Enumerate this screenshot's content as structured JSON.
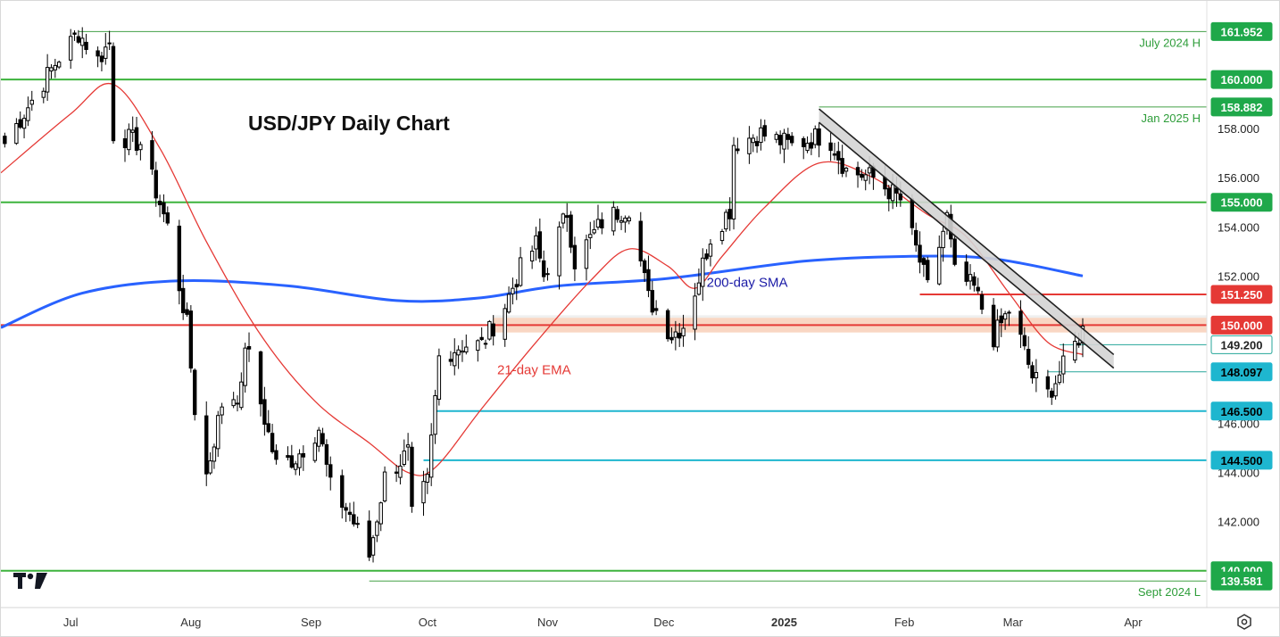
{
  "chart_data": {
    "type": "candlestick",
    "title": "USD/JPY Daily Chart",
    "ylim": [
      138.5,
      163.2
    ],
    "yticks": [
      142.0,
      144.0,
      146.0,
      152.0,
      154.0,
      156.0,
      158.0
    ],
    "x_range": [
      "2024-06-13",
      "2025-04-20"
    ],
    "xticks": [
      {
        "label": "Jul",
        "date": "2024-07-01"
      },
      {
        "label": "Aug",
        "date": "2024-08-01"
      },
      {
        "label": "Sep",
        "date": "2024-09-01"
      },
      {
        "label": "Oct",
        "date": "2024-10-01"
      },
      {
        "label": "Nov",
        "date": "2024-11-01"
      },
      {
        "label": "Dec",
        "date": "2024-12-01"
      },
      {
        "label": "2025",
        "date": "2025-01-01",
        "bold": true
      },
      {
        "label": "Feb",
        "date": "2025-02-01"
      },
      {
        "label": "Mar",
        "date": "2025-03-01"
      },
      {
        "label": "Apr",
        "date": "2025-04-01"
      }
    ],
    "candle_anchors": [
      [
        "2024-06-14",
        157.4
      ],
      [
        "2024-06-28",
        160.9
      ],
      [
        "2024-07-03",
        161.9
      ],
      [
        "2024-07-08",
        160.8
      ],
      [
        "2024-07-11",
        161.5
      ],
      [
        "2024-07-12",
        157.8
      ],
      [
        "2024-07-19",
        157.4
      ],
      [
        "2024-07-26",
        154.0
      ],
      [
        "2024-07-31",
        150.0
      ],
      [
        "2024-08-02",
        146.6
      ],
      [
        "2024-08-05",
        143.9
      ],
      [
        "2024-08-09",
        146.8
      ],
      [
        "2024-08-14",
        147.3
      ],
      [
        "2024-08-15",
        149.3
      ],
      [
        "2024-08-20",
        146.2
      ],
      [
        "2024-08-23",
        144.3
      ],
      [
        "2024-08-28",
        144.6
      ],
      [
        "2024-09-03",
        145.8
      ],
      [
        "2024-09-06",
        143.4
      ],
      [
        "2024-09-11",
        142.3
      ],
      [
        "2024-09-16",
        140.6
      ],
      [
        "2024-09-20",
        143.8
      ],
      [
        "2024-09-26",
        144.8
      ],
      [
        "2024-09-27",
        142.2
      ],
      [
        "2024-10-01",
        143.6
      ],
      [
        "2024-10-04",
        148.7
      ],
      [
        "2024-10-10",
        149.2
      ],
      [
        "2024-10-15",
        149.2
      ],
      [
        "2024-10-21",
        150.8
      ],
      [
        "2024-10-25",
        152.3
      ],
      [
        "2024-10-29",
        153.3
      ],
      [
        "2024-10-31",
        152.0
      ],
      [
        "2024-11-06",
        154.6
      ],
      [
        "2024-11-08",
        152.6
      ],
      [
        "2024-11-15",
        154.2
      ],
      [
        "2024-11-19",
        154.6
      ],
      [
        "2024-11-22",
        154.8
      ],
      [
        "2024-11-27",
        151.1
      ],
      [
        "2024-12-03",
        149.6
      ],
      [
        "2024-12-06",
        150.0
      ],
      [
        "2024-12-10",
        151.9
      ],
      [
        "2024-12-13",
        153.6
      ],
      [
        "2024-12-18",
        154.7
      ],
      [
        "2024-12-19",
        157.4
      ],
      [
        "2024-12-26",
        157.8
      ],
      [
        "2025-01-03",
        157.3
      ],
      [
        "2025-01-10",
        157.7
      ],
      [
        "2025-01-13",
        157.5
      ],
      [
        "2025-01-17",
        156.3
      ],
      [
        "2025-01-24",
        156.0
      ],
      [
        "2025-01-31",
        155.1
      ],
      [
        "2025-02-05",
        152.6
      ],
      [
        "2025-02-07",
        151.5
      ],
      [
        "2025-02-12",
        154.4
      ],
      [
        "2025-02-14",
        152.1
      ],
      [
        "2025-02-19",
        151.5
      ],
      [
        "2025-02-24",
        149.5
      ],
      [
        "2025-02-28",
        150.6
      ],
      [
        "2025-03-03",
        149.4
      ],
      [
        "2025-03-06",
        147.9
      ],
      [
        "2025-03-10",
        147.2
      ],
      [
        "2025-03-13",
        148.0
      ],
      [
        "2025-03-17",
        149.2
      ],
      [
        "2025-03-19",
        149.8
      ]
    ],
    "ema21": [
      [
        "2024-06-13",
        156.2
      ],
      [
        "2024-07-01",
        158.6
      ],
      [
        "2024-07-12",
        159.8
      ],
      [
        "2024-07-24",
        157.2
      ],
      [
        "2024-08-05",
        153.4
      ],
      [
        "2024-08-19",
        149.6
      ],
      [
        "2024-09-02",
        146.9
      ],
      [
        "2024-09-16",
        145.2
      ],
      [
        "2024-09-26",
        144.0
      ],
      [
        "2024-10-03",
        144.2
      ],
      [
        "2024-10-15",
        146.6
      ],
      [
        "2024-10-29",
        149.3
      ],
      [
        "2024-11-12",
        151.8
      ],
      [
        "2024-11-22",
        153.1
      ],
      [
        "2024-12-02",
        152.4
      ],
      [
        "2024-12-09",
        151.5
      ],
      [
        "2024-12-16",
        152.8
      ],
      [
        "2024-12-27",
        154.8
      ],
      [
        "2025-01-10",
        156.6
      ],
      [
        "2025-01-24",
        156.0
      ],
      [
        "2025-02-07",
        154.5
      ],
      [
        "2025-02-17",
        153.6
      ],
      [
        "2025-02-28",
        151.3
      ],
      [
        "2025-03-10",
        149.3
      ],
      [
        "2025-03-19",
        148.8
      ]
    ],
    "sma200": [
      [
        "2024-06-13",
        149.9
      ],
      [
        "2024-07-04",
        151.3
      ],
      [
        "2024-07-29",
        151.8
      ],
      [
        "2024-08-26",
        151.6
      ],
      [
        "2024-09-23",
        151.0
      ],
      [
        "2024-10-14",
        151.1
      ],
      [
        "2024-11-04",
        151.6
      ],
      [
        "2024-12-02",
        151.9
      ],
      [
        "2025-01-06",
        152.6
      ],
      [
        "2025-02-03",
        152.8
      ],
      [
        "2025-02-24",
        152.7
      ],
      [
        "2025-03-19",
        152.0
      ]
    ],
    "levels": [
      {
        "value": "161.952",
        "y": 161.952,
        "label": "July 2024 H",
        "from": "2024-07-03",
        "line_color": "#43a047",
        "line_width": 1,
        "tag_bg": "#1fa84a",
        "tag_fg": "#ffffff"
      },
      {
        "value": "160.000",
        "y": 160.0,
        "label": "",
        "from": "2024-06-13",
        "line_color": "#3db33d",
        "line_width": 2,
        "tag_bg": "#1fa84a",
        "tag_fg": "#ffffff"
      },
      {
        "value": "158.882",
        "y": 158.882,
        "label": "Jan 2025 H",
        "from": "2025-01-10",
        "line_color": "#43a047",
        "line_width": 1,
        "tag_bg": "#1fa84a",
        "tag_fg": "#ffffff"
      },
      {
        "value": "155.000",
        "y": 155.0,
        "label": "",
        "from": "2024-06-13",
        "line_color": "#3db33d",
        "line_width": 2,
        "tag_bg": "#1fa84a",
        "tag_fg": "#ffffff"
      },
      {
        "value": "151.250",
        "y": 151.25,
        "label": "",
        "from": "2025-02-05",
        "line_color": "#e53935",
        "line_width": 2,
        "tag_bg": "#e53935",
        "tag_fg": "#ffffff"
      },
      {
        "value": "150.000",
        "y": 150.0,
        "label": "",
        "from": "2024-06-13",
        "line_color": "#e53935",
        "line_width": 2,
        "tag_bg": "#e53935",
        "tag_fg": "#ffffff"
      },
      {
        "value": "149.200",
        "y": 149.2,
        "label": "",
        "from": "2025-03-13",
        "line_color": "#26a69a",
        "line_width": 1,
        "tag_bg": "#ffffff",
        "tag_fg": "#222222",
        "tag_border": "#26a69a"
      },
      {
        "value": "148.097",
        "y": 148.097,
        "label": "",
        "from": "2025-03-10",
        "line_color": "#26a69a",
        "line_width": 1,
        "tag_bg": "#1eb6cf",
        "tag_fg": "#000000"
      },
      {
        "value": "146.500",
        "y": 146.5,
        "label": "",
        "from": "2024-10-03",
        "line_color": "#1eb6cf",
        "line_width": 2,
        "tag_bg": "#1eb6cf",
        "tag_fg": "#000000"
      },
      {
        "value": "144.500",
        "y": 144.5,
        "label": "",
        "from": "2024-09-30",
        "line_color": "#1eb6cf",
        "line_width": 2,
        "tag_bg": "#1eb6cf",
        "tag_fg": "#000000"
      },
      {
        "value": "140.000",
        "y": 140.0,
        "label": "",
        "from": "2024-06-13",
        "line_color": "#3db33d",
        "line_width": 2,
        "tag_bg": "#1fa84a",
        "tag_fg": "#ffffff"
      },
      {
        "value": "139.581",
        "y": 139.581,
        "label": "Sept 2024 L",
        "from": "2024-09-16",
        "line_color": "#43a047",
        "line_width": 1,
        "tag_bg": "#1fa84a",
        "tag_fg": "#ffffff"
      }
    ],
    "zone": {
      "from": "2024-10-18",
      "y_low": 149.7,
      "y_high": 150.3,
      "color": "#f8cfb8"
    },
    "zone2": {
      "from": "2024-10-18",
      "y_low": 150.3,
      "y_high": 150.4,
      "color": "#ececec"
    },
    "trendline_channel": {
      "start": [
        "2025-01-10",
        158.8
      ],
      "end": [
        "2025-03-27",
        148.8
      ],
      "width": 0.55,
      "fill": "#d4d4d4",
      "stroke": "#222222"
    },
    "annotations": [
      {
        "text": "200-day SMA",
        "date": "2024-12-12",
        "y": 151.55,
        "color": "#1a1aa6"
      },
      {
        "text": "21-day EMA",
        "date": "2024-10-19",
        "y": 148.0,
        "color": "#e53935"
      }
    ],
    "colors": {
      "ema": "#e53935",
      "sma": "#2962ff",
      "candle_up": "#ffffff",
      "candle_down": "#000000",
      "wick": "#000000"
    }
  },
  "logo": {
    "text": "TV"
  }
}
